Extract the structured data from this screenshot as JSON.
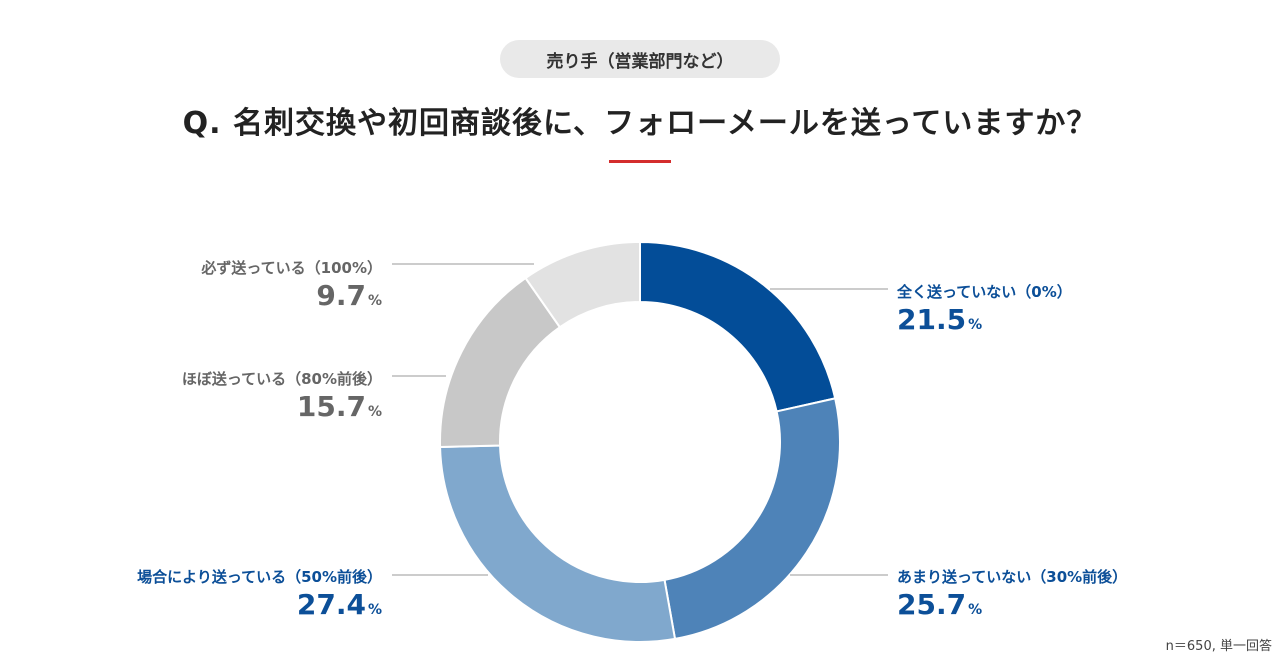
{
  "header": {
    "category_pill": "売り手（営業部門など）",
    "question": "Q. 名刺交換や初回商談後に、フォローメールを送っていますか？"
  },
  "footnote": "n＝650, 単一回答",
  "colors": {
    "title_rule": "#d42d2d",
    "label_blue": "#0c4f98",
    "label_gray": "#666666"
  },
  "chart_data": {
    "type": "pie",
    "donut": true,
    "unit": "%",
    "categories": [
      "全く送っていない（0%）",
      "あまり送っていない（30%前後）",
      "場合により送っている（50%前後）",
      "ほぼ送っている（80%前後）",
      "必ず送っている（100%）"
    ],
    "values": [
      21.5,
      25.7,
      27.4,
      15.7,
      9.7
    ],
    "value_labels": [
      "21.5",
      "25.7",
      "27.4",
      "15.7",
      "9.7"
    ],
    "colors": [
      "#034d98",
      "#4e83b8",
      "#80a8cd",
      "#c8c8c8",
      "#e2e2e2"
    ],
    "start": "12 o'clock, clockwise"
  }
}
